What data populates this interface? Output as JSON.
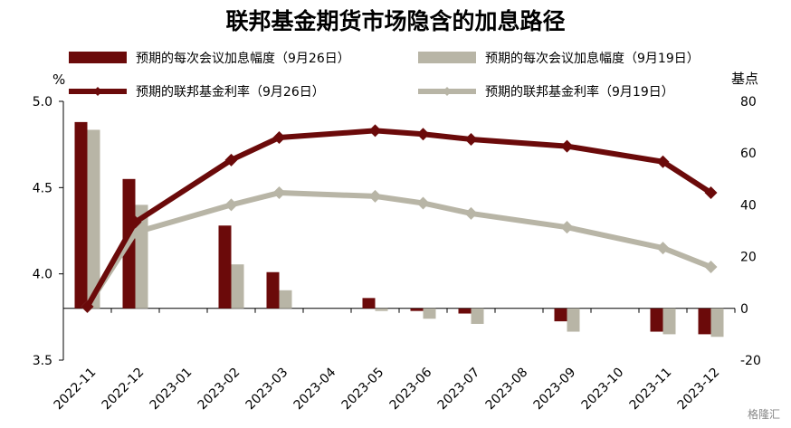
{
  "chart_data": {
    "type": "bar+line",
    "title": "联邦基金期货市场隐含的加息路径",
    "y_left_unit": "%",
    "y_right_unit": "基点",
    "y_left_ticks": [
      "5.0",
      "4.5",
      "4.0",
      "3.5"
    ],
    "y_right_ticks": [
      "80",
      "60",
      "40",
      "20",
      "0",
      "-20"
    ],
    "ylim_left": [
      3.5,
      5.0
    ],
    "ylim_right": [
      -20,
      80
    ],
    "categories": [
      "2022-11",
      "2022-12",
      "2023-01",
      "2023-02",
      "2023-03",
      "2023-04",
      "2023-05",
      "2023-06",
      "2023-07",
      "2023-08",
      "2023-09",
      "2023-10",
      "2023-11",
      "2023-12"
    ],
    "bar_series": [
      {
        "name": "预期的每次会议加息幅度（9月26日）",
        "color": "#6b0a0a",
        "axis": "right",
        "values": [
          72,
          50,
          null,
          32,
          14,
          null,
          4,
          -1,
          -2,
          null,
          -5,
          null,
          -9,
          -10
        ]
      },
      {
        "name": "预期的每次会议加息幅度（9月19日）",
        "color": "#b8b5a6",
        "axis": "right",
        "values": [
          69,
          40,
          null,
          17,
          7,
          null,
          -1,
          -4,
          -6,
          null,
          -9,
          null,
          -10,
          -11
        ]
      }
    ],
    "line_series": [
      {
        "name": "预期的联邦基金利率（9月26日）",
        "color": "#6b0a0a",
        "axis": "left",
        "points": [
          [
            "2022-11",
            3.81
          ],
          [
            "2022-12",
            4.3
          ],
          [
            "2023-02",
            4.66
          ],
          [
            "2023-03",
            4.79
          ],
          [
            "2023-05",
            4.83
          ],
          [
            "2023-06",
            4.81
          ],
          [
            "2023-07",
            4.78
          ],
          [
            "2023-09",
            4.74
          ],
          [
            "2023-11",
            4.65
          ],
          [
            "2023-12",
            4.47
          ]
        ]
      },
      {
        "name": "预期的联邦基金利率（9月19日）",
        "color": "#b8b5a6",
        "axis": "left",
        "points": [
          [
            "2022-11",
            3.81
          ],
          [
            "2022-12",
            4.24
          ],
          [
            "2023-02",
            4.4
          ],
          [
            "2023-03",
            4.47
          ],
          [
            "2023-05",
            4.45
          ],
          [
            "2023-06",
            4.41
          ],
          [
            "2023-07",
            4.35
          ],
          [
            "2023-09",
            4.27
          ],
          [
            "2023-11",
            4.15
          ],
          [
            "2023-12",
            4.04
          ]
        ]
      }
    ],
    "grid": false,
    "legend_position": "top"
  },
  "watermark": "格隆汇"
}
